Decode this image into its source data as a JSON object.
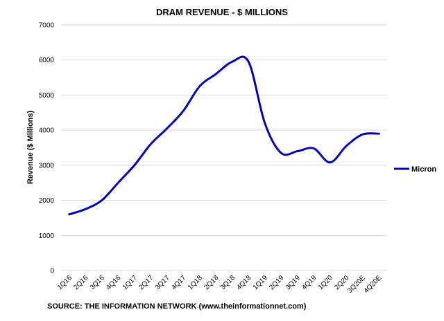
{
  "chart_data": {
    "type": "line",
    "title": "DRAM REVENUE - $ MILLIONS",
    "ylabel": "Revenue ($ Millions)",
    "xlabel": "",
    "ylim": [
      0,
      7000
    ],
    "yticks": [
      0,
      1000,
      2000,
      3000,
      4000,
      5000,
      6000,
      7000
    ],
    "grid": true,
    "legend_position": "right",
    "categories": [
      "1Q16",
      "2Q16",
      "3Q16",
      "4Q16",
      "1Q17",
      "2Q17",
      "3Q17",
      "4Q17",
      "1Q18",
      "2Q18",
      "3Q18",
      "4Q18",
      "1Q19",
      "2Q19",
      "3Q19",
      "4Q19",
      "1Q20",
      "2Q20",
      "3Q20E",
      "4Q20E"
    ],
    "series": [
      {
        "name": "Micron",
        "color": "#0000b3",
        "values": [
          1600,
          1750,
          2000,
          2500,
          3000,
          3600,
          4050,
          4550,
          5250,
          5600,
          5950,
          5950,
          4200,
          3350,
          3400,
          3480,
          3080,
          3550,
          3880,
          3900
        ]
      }
    ],
    "source": "SOURCE: THE INFORMATION NETWORK (www.theinformationnet.com)"
  }
}
